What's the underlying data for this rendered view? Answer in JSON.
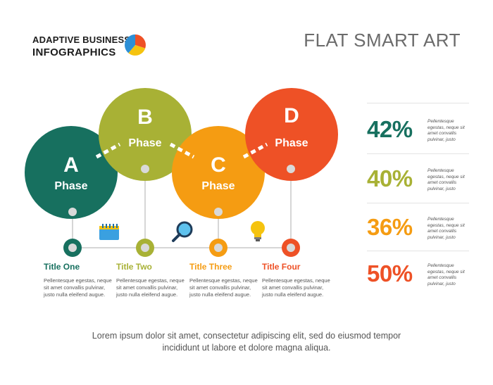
{
  "brand": {
    "line1": "ADAPTIVE BUSINESS",
    "line2": "INFOGRAPHICS"
  },
  "title": "FLAT SMART ART",
  "colors": {
    "a": "#17705f",
    "b": "#a8b135",
    "c": "#f59c12",
    "d": "#ee5126",
    "line": "#d6d6d6",
    "node": "#d9d9d9"
  },
  "phases": [
    {
      "letter": "A",
      "word": "Phase",
      "color": "#17705f"
    },
    {
      "letter": "B",
      "word": "Phase",
      "color": "#a8b135"
    },
    {
      "letter": "C",
      "word": "Phase",
      "color": "#f59c12"
    },
    {
      "letter": "D",
      "word": "Phase",
      "color": "#ee5126"
    }
  ],
  "icons": [
    "calendar-icon",
    "magnifier-icon",
    "lightbulb-icon"
  ],
  "steps": [
    {
      "title": "Title One",
      "desc": "Pellentesque egestas, neque sit amet convallis pulvinar, justo nulla eleifend augue.",
      "color": "#17705f"
    },
    {
      "title": "Title Two",
      "desc": "Pellentesque egestas, neque sit amet convallis pulvinar, justo nulla eleifend augue.",
      "color": "#a8b135"
    },
    {
      "title": "Title Three",
      "desc": "Pellentesque egestas, neque sit amet convallis pulvinar, justo nulla eleifend augue.",
      "color": "#f59c12"
    },
    {
      "title": "Title Four",
      "desc": "Pellentesque egestas, neque sit amet convallis pulvinar, justo nulla eleifend augue.",
      "color": "#ee5126"
    }
  ],
  "stats": [
    {
      "value": "42%",
      "desc": "Pellentesque egestas, neque sit amet convallis pulvinar, justo",
      "color": "#17705f"
    },
    {
      "value": "40%",
      "desc": "Pellentesque egestas, neque sit amet convallis pulvinar, justo",
      "color": "#a8b135"
    },
    {
      "value": "36%",
      "desc": "Pellentesque egestas, neque sit amet convallis pulvinar, justo",
      "color": "#f59c12"
    },
    {
      "value": "50%",
      "desc": "Pellentesque egestas, neque sit amet convallis pulvinar, justo",
      "color": "#ee5126"
    }
  ],
  "footer": {
    "line1": "Lorem ipsum dolor sit amet, consectetur adipiscing elit, sed do eiusmod tempor",
    "line2": "incididunt ut labore et dolore magna aliqua."
  }
}
